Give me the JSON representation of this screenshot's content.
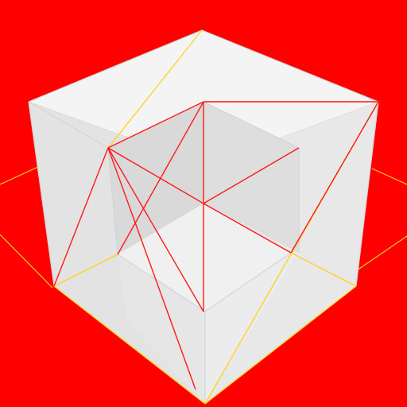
{
  "scene": {
    "subject": "wireframe-cube",
    "background_color": "#ff0000",
    "colors": {
      "top_face": "#f3f3f3",
      "left_face": "#e6e6e6",
      "right_face": "#e9e9e9",
      "inner_back_face": "#dcdcdc",
      "inner_left_face": "#d7d7d7",
      "inner_floor": "#f1f1f1",
      "inner_top": "#efefef",
      "edge_line": "#d8d8d8",
      "red_line": "#ff1a1a",
      "yellow_line": "#ffd21a"
    }
  }
}
